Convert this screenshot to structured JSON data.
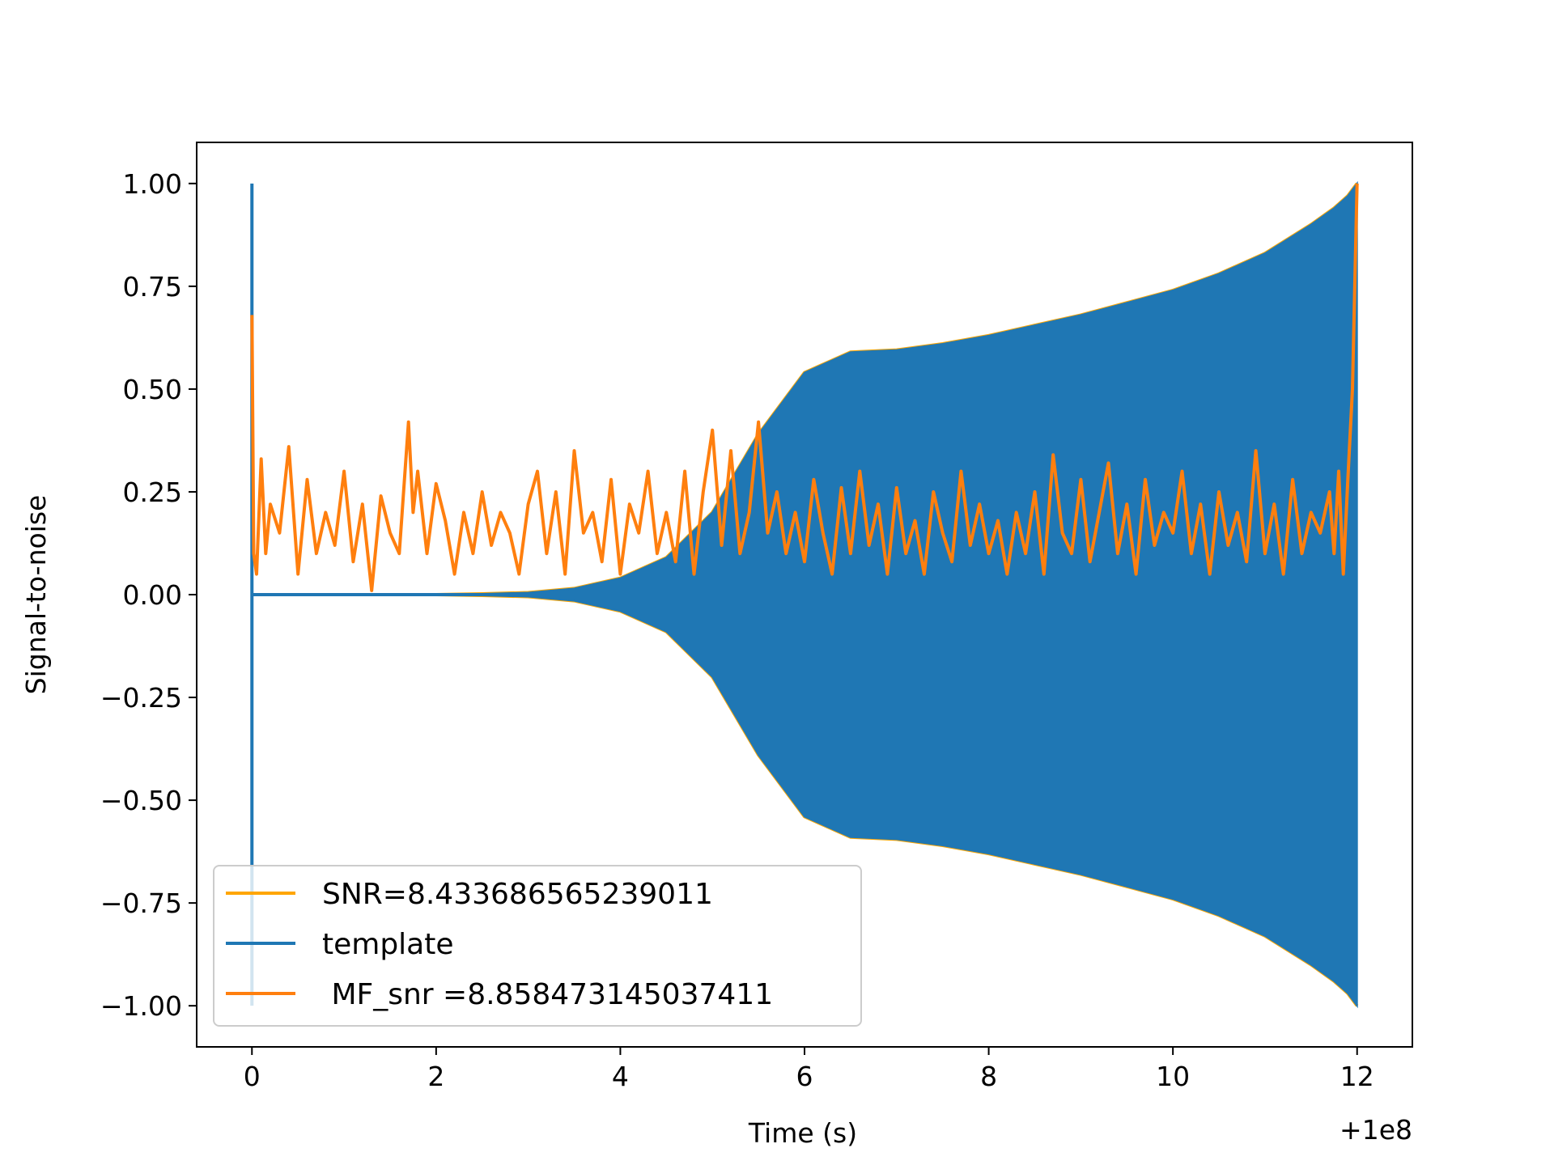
{
  "chart_data": {
    "type": "line",
    "title": "",
    "xlabel": "Time (s)",
    "ylabel": "Signal-to-noise",
    "x_offset_label": "+1e8",
    "xlim": [
      -0.6,
      12.6
    ],
    "ylim": [
      -1.1,
      1.1
    ],
    "x_ticks": [
      0,
      2,
      4,
      6,
      8,
      10,
      12
    ],
    "x_tick_labels": [
      "0",
      "2",
      "4",
      "6",
      "8",
      "10",
      "12"
    ],
    "y_ticks": [
      1.0,
      0.75,
      0.5,
      0.25,
      0.0,
      -0.25,
      -0.5,
      -0.75,
      -1.0
    ],
    "y_tick_labels": [
      "1.00",
      "0.75",
      "0.50",
      "0.25",
      "0.00",
      "−0.25",
      "−0.50",
      "−0.75",
      "−1.00"
    ],
    "grid": false,
    "legend_position": "lower-left",
    "series": [
      {
        "name": "SNR=8.433686565239011",
        "color": "#ffa500",
        "role": "snr"
      },
      {
        "name": "template",
        "color": "#1f77b4",
        "role": "template",
        "envelope": {
          "x": [
            0.0,
            0.5,
            1.0,
            1.5,
            2.0,
            2.5,
            3.0,
            3.5,
            4.0,
            4.5,
            5.0,
            5.5,
            6.0,
            6.5,
            7.0,
            7.5,
            8.0,
            8.5,
            9.0,
            9.5,
            10.0,
            10.5,
            11.0,
            11.5,
            11.75,
            11.9,
            12.0
          ],
          "amplitude": [
            0.0,
            0.0,
            0.0,
            0.0,
            0.0,
            0.002,
            0.005,
            0.015,
            0.04,
            0.09,
            0.2,
            0.39,
            0.54,
            0.59,
            0.595,
            0.61,
            0.63,
            0.655,
            0.68,
            0.71,
            0.74,
            0.78,
            0.83,
            0.9,
            0.94,
            0.97,
            1.0
          ]
        },
        "spike": {
          "x": 0.0,
          "max": 1.0,
          "min": -1.0
        }
      },
      {
        "name": " MF_snr =8.858473145037411",
        "color": "#ff7f0e",
        "role": "mf_snr",
        "x": [
          0.0,
          0.02,
          0.05,
          0.1,
          0.15,
          0.2,
          0.3,
          0.4,
          0.5,
          0.6,
          0.7,
          0.8,
          0.9,
          1.0,
          1.1,
          1.2,
          1.3,
          1.4,
          1.5,
          1.6,
          1.7,
          1.75,
          1.8,
          1.9,
          2.0,
          2.1,
          2.2,
          2.3,
          2.4,
          2.5,
          2.6,
          2.7,
          2.8,
          2.9,
          3.0,
          3.1,
          3.2,
          3.3,
          3.4,
          3.5,
          3.6,
          3.7,
          3.8,
          3.9,
          4.0,
          4.1,
          4.2,
          4.3,
          4.4,
          4.5,
          4.6,
          4.7,
          4.8,
          4.9,
          5.0,
          5.1,
          5.2,
          5.3,
          5.4,
          5.5,
          5.6,
          5.7,
          5.8,
          5.9,
          6.0,
          6.1,
          6.2,
          6.3,
          6.4,
          6.5,
          6.6,
          6.7,
          6.8,
          6.9,
          7.0,
          7.1,
          7.2,
          7.3,
          7.4,
          7.5,
          7.6,
          7.7,
          7.8,
          7.9,
          8.0,
          8.1,
          8.2,
          8.3,
          8.4,
          8.5,
          8.6,
          8.7,
          8.8,
          8.9,
          9.0,
          9.1,
          9.2,
          9.3,
          9.4,
          9.5,
          9.6,
          9.7,
          9.8,
          9.9,
          10.0,
          10.1,
          10.2,
          10.3,
          10.4,
          10.5,
          10.6,
          10.7,
          10.8,
          10.9,
          11.0,
          11.1,
          11.2,
          11.3,
          11.4,
          11.5,
          11.6,
          11.7,
          11.75,
          11.8,
          11.85,
          11.9,
          11.95,
          12.0
        ],
        "y": [
          0.68,
          0.1,
          0.05,
          0.33,
          0.1,
          0.22,
          0.15,
          0.36,
          0.05,
          0.28,
          0.1,
          0.2,
          0.12,
          0.3,
          0.08,
          0.22,
          0.01,
          0.24,
          0.15,
          0.1,
          0.42,
          0.2,
          0.3,
          0.1,
          0.27,
          0.18,
          0.05,
          0.2,
          0.1,
          0.25,
          0.12,
          0.2,
          0.15,
          0.05,
          0.22,
          0.3,
          0.1,
          0.25,
          0.05,
          0.35,
          0.15,
          0.2,
          0.08,
          0.28,
          0.05,
          0.22,
          0.15,
          0.3,
          0.1,
          0.2,
          0.08,
          0.3,
          0.05,
          0.25,
          0.4,
          0.12,
          0.35,
          0.1,
          0.2,
          0.42,
          0.15,
          0.25,
          0.1,
          0.2,
          0.08,
          0.28,
          0.15,
          0.05,
          0.26,
          0.1,
          0.3,
          0.12,
          0.22,
          0.05,
          0.26,
          0.1,
          0.18,
          0.05,
          0.25,
          0.15,
          0.08,
          0.3,
          0.12,
          0.22,
          0.1,
          0.18,
          0.05,
          0.2,
          0.1,
          0.25,
          0.05,
          0.34,
          0.15,
          0.1,
          0.28,
          0.08,
          0.2,
          0.32,
          0.1,
          0.22,
          0.05,
          0.28,
          0.12,
          0.2,
          0.15,
          0.3,
          0.1,
          0.22,
          0.05,
          0.25,
          0.12,
          0.2,
          0.08,
          0.35,
          0.1,
          0.22,
          0.05,
          0.28,
          0.1,
          0.2,
          0.15,
          0.25,
          0.1,
          0.3,
          0.05,
          0.28,
          0.5,
          1.0
        ]
      }
    ]
  }
}
